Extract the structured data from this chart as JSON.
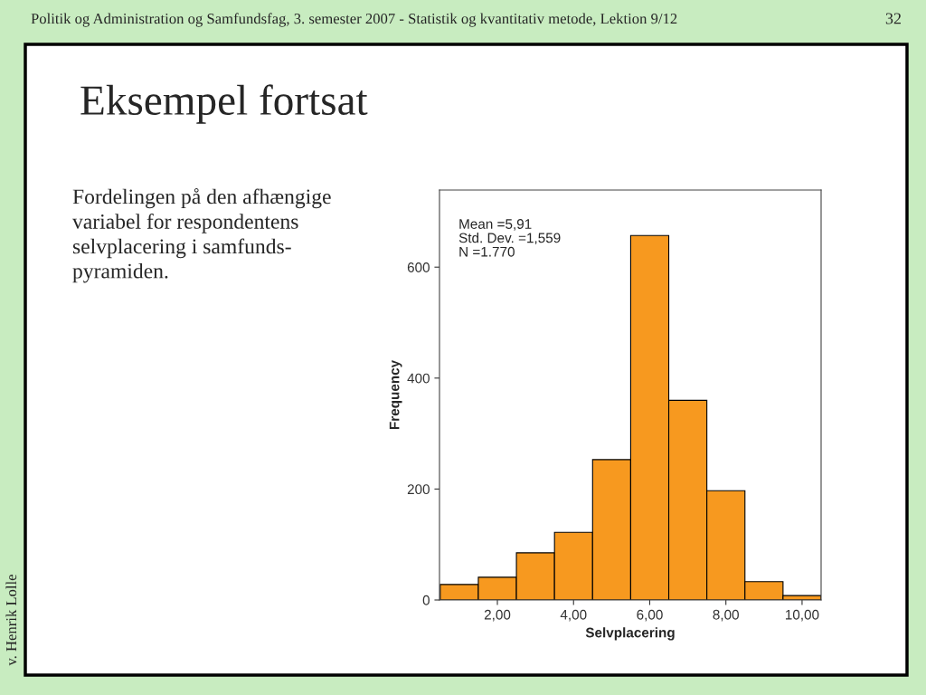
{
  "chart_data": {
    "type": "histogram",
    "title": "Eksempel fortsat",
    "xlabel": "Selvplacering",
    "ylabel": "Frequency",
    "bins": [
      0.5,
      1.5,
      2.5,
      3.5,
      4.5,
      5.5,
      6.5,
      7.5,
      8.5,
      9.5,
      10.5
    ],
    "values": [
      28,
      41,
      85,
      122,
      253,
      657,
      360,
      197,
      33,
      8
    ],
    "color": "#f7991f",
    "xlim": [
      0.48,
      10.5
    ],
    "ylim": [
      0,
      739
    ],
    "xticks": [
      {
        "value": 2,
        "label": "2,00"
      },
      {
        "value": 4,
        "label": "4,00"
      },
      {
        "value": 6,
        "label": "6,00"
      },
      {
        "value": 8,
        "label": "8,00"
      },
      {
        "value": 10,
        "label": "10,00"
      }
    ],
    "yticks": [
      0,
      200,
      400,
      600
    ],
    "grid": false,
    "legend": false,
    "annotations": [
      "Mean =5,91\nStd. Dev. =1,559\nN =1.770",
      "Politik og Administration og Samfundsfag, 3. semester 2007 - Statistik og kvantitativ metode, Lektion 9/12",
      "32",
      "Fordelingen på den afhængige\nvariabel for respondentens\nselvplacering i samfunds-\npyramiden.",
      "v. Henrik Lolle"
    ]
  }
}
